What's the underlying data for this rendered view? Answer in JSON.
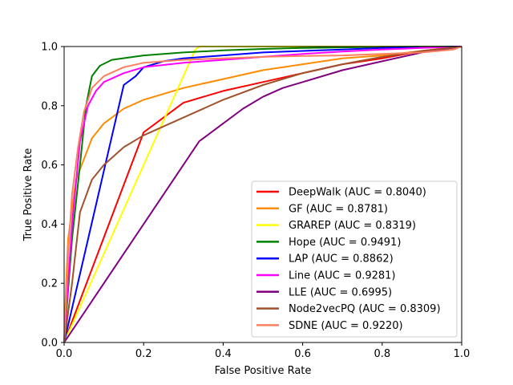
{
  "chart_data": {
    "type": "line",
    "xlabel": "False Positive Rate",
    "ylabel": "True Positive Rate",
    "xlim": [
      0,
      1
    ],
    "ylim": [
      0,
      1
    ],
    "x_ticks": [
      "0.0",
      "0.2",
      "0.4",
      "0.6",
      "0.8",
      "1.0"
    ],
    "y_ticks": [
      "0.0",
      "0.2",
      "0.4",
      "0.6",
      "0.8",
      "1.0"
    ],
    "grid": false,
    "legend_position": "lower-right",
    "series": [
      {
        "name": "DeepWalk (AUC = 0.8040)",
        "color": "#ff0000",
        "x": [
          0,
          0.2,
          0.25,
          0.3,
          0.4,
          0.5,
          0.6,
          0.7,
          0.8,
          0.9,
          1.0
        ],
        "y": [
          0,
          0.71,
          0.76,
          0.81,
          0.85,
          0.88,
          0.91,
          0.94,
          0.96,
          0.985,
          1.0
        ]
      },
      {
        "name": "GF (AUC = 0.8781)",
        "color": "#ff8c00",
        "x": [
          0,
          0.005,
          0.01,
          0.02,
          0.03,
          0.05,
          0.07,
          0.1,
          0.15,
          0.2,
          0.3,
          0.4,
          0.5,
          0.6,
          0.7,
          0.8,
          0.9,
          1.0
        ],
        "y": [
          0,
          0.2,
          0.35,
          0.45,
          0.55,
          0.62,
          0.69,
          0.74,
          0.79,
          0.82,
          0.86,
          0.89,
          0.92,
          0.94,
          0.96,
          0.97,
          0.985,
          1.0
        ]
      },
      {
        "name": "GRAREP (AUC = 0.8319)",
        "color": "#ffff00",
        "x": [
          0,
          0.33,
          0.34,
          1.0
        ],
        "y": [
          0,
          0.99,
          1.0,
          1.0
        ]
      },
      {
        "name": "Hope (AUC = 0.9491)",
        "color": "#008000",
        "x": [
          0,
          0.02,
          0.04,
          0.055,
          0.07,
          0.09,
          0.12,
          0.2,
          0.3,
          0.4,
          0.5,
          0.6,
          0.7,
          0.8,
          1.0
        ],
        "y": [
          0,
          0.35,
          0.6,
          0.8,
          0.9,
          0.935,
          0.955,
          0.97,
          0.98,
          0.987,
          0.992,
          0.995,
          0.997,
          0.999,
          1.0
        ]
      },
      {
        "name": "LAP (AUC = 0.8862)",
        "color": "#0000ff",
        "x": [
          0,
          0.15,
          0.18,
          0.2,
          0.25,
          0.3,
          0.4,
          0.5,
          0.6,
          0.7,
          0.8,
          1.0
        ],
        "y": [
          0,
          0.87,
          0.9,
          0.93,
          0.95,
          0.96,
          0.97,
          0.98,
          0.985,
          0.99,
          0.995,
          1.0
        ]
      },
      {
        "name": "Line (AUC = 0.9281)",
        "color": "#ff00ff",
        "x": [
          0,
          0.02,
          0.04,
          0.06,
          0.08,
          0.1,
          0.15,
          0.2,
          0.3,
          0.4,
          0.5,
          0.6,
          0.7,
          0.8,
          0.9,
          1.0
        ],
        "y": [
          0,
          0.4,
          0.68,
          0.8,
          0.85,
          0.88,
          0.91,
          0.93,
          0.945,
          0.955,
          0.965,
          0.975,
          0.983,
          0.99,
          0.995,
          1.0
        ]
      },
      {
        "name": "LLE (AUC = 0.6995)",
        "color": "#800080",
        "x": [
          0,
          0.34,
          0.4,
          0.45,
          0.5,
          0.55,
          0.6,
          0.7,
          0.8,
          0.9,
          1.0
        ],
        "y": [
          0,
          0.68,
          0.74,
          0.79,
          0.83,
          0.86,
          0.88,
          0.92,
          0.95,
          0.98,
          1.0
        ]
      },
      {
        "name": "Node2vecPQ (AUC = 0.8309)",
        "color": "#a0522d",
        "x": [
          0,
          0.02,
          0.04,
          0.07,
          0.1,
          0.15,
          0.2,
          0.3,
          0.4,
          0.5,
          0.6,
          0.7,
          0.8,
          0.9,
          1.0
        ],
        "y": [
          0,
          0.2,
          0.44,
          0.55,
          0.6,
          0.66,
          0.7,
          0.76,
          0.82,
          0.87,
          0.91,
          0.94,
          0.965,
          0.985,
          1.0
        ]
      },
      {
        "name": "SDNE (AUC = 0.9220)",
        "color": "#fa8060",
        "x": [
          0,
          0.01,
          0.02,
          0.035,
          0.05,
          0.07,
          0.1,
          0.15,
          0.2,
          0.3,
          0.4,
          0.5,
          0.6,
          0.7,
          0.8,
          0.9,
          0.98,
          1.0
        ],
        "y": [
          0,
          0.3,
          0.5,
          0.66,
          0.78,
          0.86,
          0.9,
          0.93,
          0.945,
          0.955,
          0.96,
          0.965,
          0.968,
          0.97,
          0.975,
          0.98,
          0.99,
          1.0
        ]
      }
    ]
  }
}
